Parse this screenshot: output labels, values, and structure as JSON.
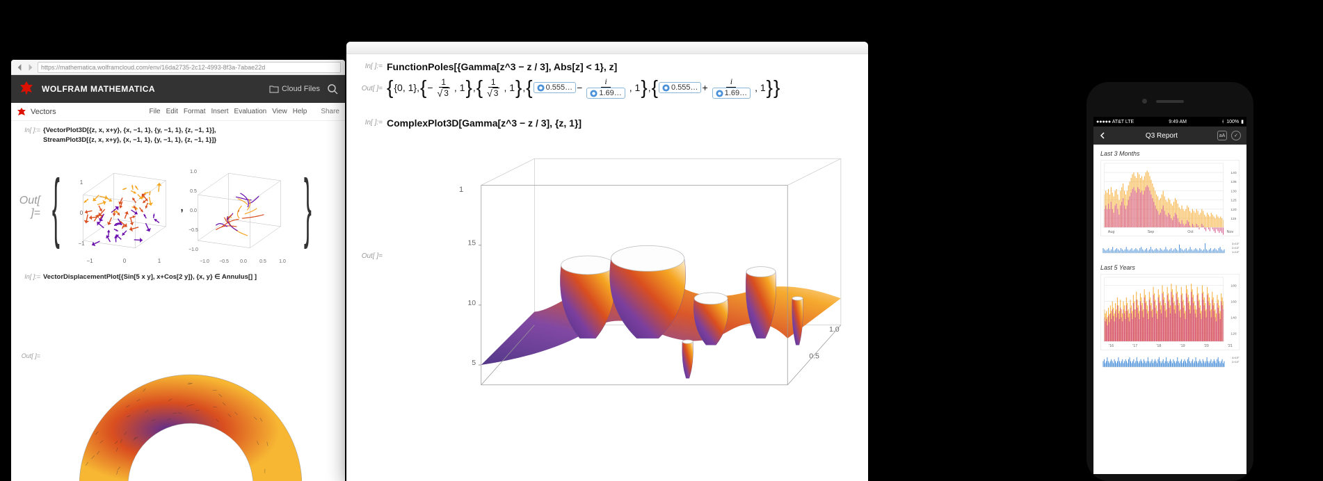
{
  "browser": {
    "url": "https://mathematica.wolframcloud.com/env/16da2735-2c12-4993-8f3a-7abae22d",
    "app_title": "WOLFRAM MATHEMATICA",
    "cloud_files_label": "Cloud Files",
    "doc_title": "Vectors",
    "menus": [
      "File",
      "Edit",
      "Format",
      "Insert",
      "Evaluation",
      "View",
      "Help"
    ],
    "share_label": "Share",
    "in_label_1": "In[ ]:=",
    "out_label_1": "Out[ ]=",
    "code1_line1": "{VectorPlot3D[{z, x, x+y}, {x, −1, 1}, {y, −1, 1}, {z, −1, 1}],",
    "code1_line2": "StreamPlot3D[{z, x, x+y}, {x, −1, 1}, {y, −1, 1}, {z, −1, 1}]}",
    "in_label_2": "In[ ]:=",
    "code2": "VectorDisplacementPlot[{Sin[5 x y], x+Cos[2 y]}, {x, y} ∈ Annulus[] ]",
    "out_label_2": "Out[ ]=",
    "plot3d_ticks": [
      "−1",
      "0",
      "1"
    ],
    "stream_ticks": [
      "−1.0",
      "−0.5",
      "0.0",
      "0.5",
      "1.0"
    ],
    "colors": {
      "vec_dark": "#6a0dad",
      "vec_mid": "#d94e1f",
      "vec_light": "#f5a623",
      "annulus_grad_a": "#5c2d91",
      "annulus_grad_b": "#d94e1f",
      "annulus_grad_c": "#f7b733"
    }
  },
  "desktop": {
    "in_label": "In[ ]:=",
    "out_label": "Out[ ]=",
    "code1": "FunctionPoles[{Gamma[z^3 − z / 3], Abs[z] < 1}, z]",
    "out1_pair1": "{0, 1}",
    "out1_frac1_num": "1",
    "out1_frac1_den": "3",
    "out1_numbox1": "0.555…",
    "out1_numbox2": "1.69…",
    "out1_numbox3": "0.555…",
    "out1_numbox4": "1.69…",
    "out1_one": "1",
    "code2": "ComplexPlot3D[Gamma[z^3 − z / 3], {z, 1}]",
    "plot_z_ticks": [
      "5",
      "10",
      "15"
    ],
    "plot_x_ticks": [
      "0.5",
      "1.0"
    ],
    "plot_one": "1",
    "surface_colors": {
      "a": "#4b2e83",
      "b": "#7b3f9e",
      "c": "#d94e1f",
      "d": "#f5a623",
      "e": "#fef6e0"
    }
  },
  "phone": {
    "carrier": "●●●●● AT&T   LTE",
    "time": "9:49 AM",
    "battery": "100%",
    "bt_icon": "⚡",
    "heading": "Q3 Report",
    "aa_label": "aA",
    "section1": "Last 3 Months",
    "section2": "Last 5 Years",
    "chart1": {
      "y_ticks": [
        "140",
        "135",
        "130",
        "125",
        "120",
        "115"
      ],
      "y_range": [
        110,
        145
      ],
      "x_labels": [
        "Aug",
        "Sep",
        "Oct",
        "Nov"
      ],
      "n_bars": 90,
      "series_a_color": "#f5a623",
      "series_b_color": "#d1457e",
      "series_a": [
        128,
        130,
        129,
        131,
        128,
        132,
        129,
        127,
        130,
        131,
        128,
        125,
        130,
        132,
        134,
        130,
        128,
        130,
        133,
        135,
        137,
        139,
        140,
        138,
        137,
        140,
        139,
        137,
        138,
        136,
        138,
        140,
        141,
        140,
        138,
        136,
        134,
        132,
        130,
        128,
        127,
        125,
        126,
        128,
        130,
        127,
        125,
        124,
        126,
        125,
        123,
        122,
        124,
        126,
        125,
        123,
        121,
        120,
        122,
        120,
        119,
        120,
        122,
        121,
        119,
        118,
        120,
        119,
        118,
        120,
        119,
        117,
        118,
        120,
        119,
        117,
        116,
        118,
        117,
        116,
        118,
        117,
        116,
        115,
        117,
        116,
        115,
        116,
        115,
        114
      ],
      "series_b": [
        120,
        122,
        120,
        123,
        120,
        124,
        120,
        118,
        122,
        123,
        120,
        117,
        122,
        124,
        126,
        122,
        120,
        122,
        125,
        127,
        129,
        131,
        132,
        130,
        129,
        132,
        131,
        129,
        130,
        128,
        130,
        132,
        133,
        132,
        130,
        128,
        126,
        124,
        122,
        120,
        119,
        117,
        118,
        120,
        122,
        119,
        117,
        116,
        118,
        117,
        115,
        114,
        116,
        118,
        117,
        115,
        113,
        112,
        114,
        112,
        111,
        112,
        114,
        113,
        111,
        110,
        112,
        111,
        110,
        112,
        111,
        109,
        110,
        112,
        111,
        109,
        108,
        110,
        109,
        108,
        110,
        109,
        108,
        107,
        109,
        108,
        107,
        108,
        107,
        106
      ],
      "sub_y": [
        "3×10⁷",
        "2×10⁷",
        "1×10⁷"
      ],
      "sub_bars": [
        4,
        3,
        2,
        3,
        4,
        2,
        3,
        5,
        2,
        3,
        4,
        3,
        2,
        4,
        3,
        2,
        3,
        5,
        3,
        2,
        3,
        4,
        2,
        3,
        4,
        3,
        2,
        4,
        5,
        3,
        2,
        3,
        4,
        2,
        3,
        5,
        3,
        2,
        3,
        4,
        3,
        2,
        4,
        3,
        2,
        3,
        5,
        3,
        2,
        3,
        4,
        2,
        3,
        4,
        3,
        2,
        7,
        4,
        3,
        2,
        3,
        4,
        2,
        3,
        5,
        3,
        2,
        3,
        4,
        3,
        2,
        4,
        3,
        2,
        3,
        8,
        3,
        2,
        3,
        4,
        2,
        3,
        4,
        3,
        2,
        4,
        5,
        3,
        2,
        3
      ],
      "sub_color": "#4a90d9"
    },
    "chart2": {
      "y_ticks": [
        "180",
        "160",
        "140",
        "120"
      ],
      "y_range": [
        110,
        190
      ],
      "x_labels": [
        "'16",
        "'17",
        "'18",
        "'19",
        "'20",
        "'21"
      ],
      "n_bars": 120,
      "series_a_color": "#f5a623",
      "series_b_color": "#d1457e",
      "series_a": [
        150,
        145,
        148,
        140,
        152,
        144,
        155,
        148,
        160,
        152,
        145,
        158,
        150,
        165,
        155,
        148,
        162,
        150,
        145,
        160,
        155,
        148,
        165,
        158,
        150,
        145,
        162,
        155,
        148,
        168,
        160,
        150,
        172,
        162,
        155,
        148,
        170,
        165,
        158,
        150,
        175,
        168,
        160,
        155,
        148,
        172,
        165,
        158,
        150,
        178,
        170,
        162,
        155,
        148,
        175,
        168,
        160,
        155,
        180,
        172,
        165,
        158,
        150,
        178,
        170,
        162,
        155,
        182,
        175,
        168,
        160,
        155,
        180,
        172,
        165,
        158,
        150,
        178,
        170,
        162,
        155,
        148,
        180,
        175,
        168,
        160,
        155,
        182,
        175,
        168,
        160,
        155,
        150,
        178,
        170,
        162,
        155,
        148,
        180,
        172,
        165,
        158,
        150,
        178,
        170,
        165,
        158,
        150,
        172,
        165,
        158,
        150,
        145,
        168,
        162,
        155,
        148,
        170,
        165,
        160
      ],
      "series_b": [
        140,
        135,
        138,
        130,
        142,
        134,
        145,
        138,
        150,
        142,
        135,
        148,
        140,
        155,
        145,
        138,
        152,
        140,
        135,
        150,
        145,
        138,
        155,
        148,
        140,
        135,
        152,
        145,
        138,
        158,
        150,
        140,
        162,
        152,
        145,
        138,
        160,
        155,
        148,
        140,
        165,
        158,
        150,
        145,
        138,
        162,
        155,
        148,
        140,
        168,
        160,
        152,
        145,
        138,
        165,
        158,
        150,
        145,
        170,
        162,
        155,
        148,
        140,
        168,
        160,
        152,
        145,
        172,
        165,
        158,
        150,
        145,
        170,
        162,
        155,
        148,
        140,
        168,
        160,
        152,
        145,
        138,
        170,
        165,
        158,
        150,
        145,
        172,
        165,
        158,
        150,
        145,
        140,
        168,
        160,
        152,
        145,
        138,
        170,
        162,
        155,
        148,
        140,
        168,
        160,
        155,
        148,
        140,
        162,
        155,
        148,
        140,
        135,
        158,
        152,
        145,
        138,
        160,
        155,
        150
      ],
      "sub_y": [
        "4×10⁷",
        "2×10⁷"
      ],
      "sub_bars": [
        3,
        4,
        2,
        3,
        5,
        3,
        2,
        3,
        4,
        3,
        2,
        4,
        3,
        2,
        3,
        5,
        3,
        2,
        3,
        4,
        2,
        3,
        4,
        3,
        2,
        4,
        5,
        3,
        2,
        3,
        4,
        2,
        3,
        5,
        3,
        2,
        3,
        4,
        3,
        2,
        4,
        3,
        2,
        3,
        5,
        3,
        2,
        3,
        4,
        2,
        3,
        4,
        3,
        2,
        4,
        5,
        3,
        2,
        3,
        4,
        2,
        3,
        5,
        3,
        2,
        3,
        4,
        3,
        2,
        4,
        3,
        2,
        3,
        5,
        3,
        2,
        3,
        4,
        2,
        3,
        4,
        3,
        2,
        4,
        5,
        3,
        2,
        3,
        4,
        2,
        3,
        5,
        3,
        2,
        3,
        4,
        3,
        2,
        4,
        3,
        2,
        3,
        5,
        3,
        2,
        3,
        4,
        2,
        3,
        4,
        3,
        2,
        4,
        5,
        3,
        2,
        3,
        4,
        2,
        3
      ],
      "sub_color": "#4a90d9"
    }
  }
}
